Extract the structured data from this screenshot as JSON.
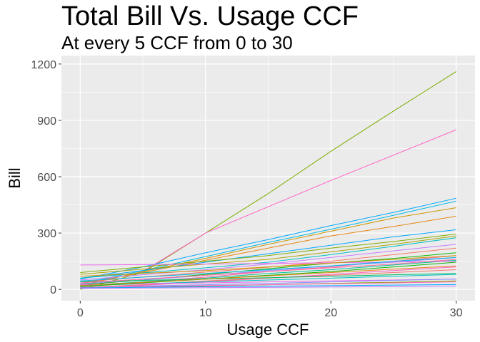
{
  "chart_data": {
    "type": "line",
    "title": "Total Bill Vs. Usage CCF",
    "subtitle": "At every 5 CCF from 0 to 30",
    "xlabel": "Usage CCF",
    "ylabel": "Bill",
    "x": [
      0,
      5,
      10,
      15,
      20,
      25,
      30
    ],
    "xticks": [
      0,
      10,
      20,
      30
    ],
    "yticks": [
      0,
      300,
      600,
      900,
      1200
    ],
    "xlim": [
      -1.5,
      31.5
    ],
    "ylim": [
      -60,
      1245
    ],
    "grid": true,
    "legend": "none",
    "series": [
      {
        "color": "#7CAE00",
        "values": [
          0,
          90,
          300,
          510,
          735,
          950,
          1160
        ]
      },
      {
        "color": "#FF61C3",
        "values": [
          20,
          95,
          300,
          440,
          580,
          715,
          850
        ]
      },
      {
        "color": "#00A9FF",
        "values": [
          55,
          120,
          195,
          265,
          340,
          410,
          485
        ]
      },
      {
        "color": "#00B8E7",
        "values": [
          30,
          100,
          175,
          250,
          320,
          395,
          470
        ]
      },
      {
        "color": "#CD9600",
        "values": [
          20,
          95,
          165,
          240,
          310,
          380,
          435
        ]
      },
      {
        "color": "#E68613",
        "values": [
          30,
          90,
          155,
          220,
          285,
          335,
          390
        ]
      },
      {
        "color": "#00A9FF",
        "values": [
          60,
          100,
          145,
          190,
          235,
          280,
          318
        ]
      },
      {
        "color": "#7CAE00",
        "values": [
          90,
          120,
          150,
          180,
          220,
          255,
          295
        ]
      },
      {
        "color": "#ABA300",
        "values": [
          80,
          108,
          135,
          160,
          200,
          240,
          285
        ]
      },
      {
        "color": "#00BFC4",
        "values": [
          60,
          88,
          115,
          145,
          185,
          230,
          275
        ]
      },
      {
        "color": "#C77CFF",
        "values": [
          50,
          78,
          105,
          135,
          170,
          205,
          240
        ]
      },
      {
        "color": "#F8766D",
        "values": [
          40,
          66,
          92,
          118,
          150,
          185,
          220
        ]
      },
      {
        "color": "#0CB702",
        "values": [
          25,
          50,
          80,
          110,
          140,
          165,
          195
        ]
      },
      {
        "color": "#FF68A1",
        "values": [
          15,
          40,
          65,
          95,
          120,
          150,
          180
        ]
      },
      {
        "color": "#8494FF",
        "values": [
          30,
          50,
          75,
          100,
          125,
          145,
          170
        ]
      },
      {
        "color": "#00C19A",
        "values": [
          20,
          40,
          60,
          85,
          105,
          130,
          155
        ]
      },
      {
        "color": "#ED68ED",
        "values": [
          130,
          132,
          135,
          138,
          142,
          146,
          150
        ]
      },
      {
        "color": "#FF61C3",
        "values": [
          5,
          22,
          40,
          60,
          80,
          100,
          120
        ]
      },
      {
        "color": "#F8766D",
        "values": [
          10,
          25,
          45,
          60,
          75,
          90,
          105
        ]
      },
      {
        "color": "#00BE67",
        "values": [
          40,
          48,
          55,
          62,
          70,
          78,
          85
        ]
      },
      {
        "color": "#00BFC4",
        "values": [
          20,
          30,
          40,
          50,
          60,
          70,
          80
        ]
      },
      {
        "color": "#ED68ED",
        "values": [
          25,
          30,
          35,
          40,
          45,
          50,
          55
        ]
      },
      {
        "color": "#8494FF",
        "values": [
          10,
          18,
          25,
          32,
          40,
          48,
          55
        ]
      },
      {
        "color": "#7CAE00",
        "values": [
          5,
          12,
          18,
          25,
          32,
          38,
          45
        ]
      },
      {
        "color": "#FF61C3",
        "values": [
          10,
          15,
          20,
          25,
          30,
          35,
          40
        ]
      },
      {
        "color": "#00A9FF",
        "values": [
          8,
          11,
          14,
          17,
          20,
          23,
          26
        ]
      },
      {
        "color": "#C77CFF",
        "values": [
          5,
          7,
          9,
          11,
          13,
          15,
          18
        ]
      },
      {
        "color": "#CD9600",
        "values": [
          70,
          85,
          100,
          120,
          140,
          160,
          180
        ]
      },
      {
        "color": "#00B8E7",
        "values": [
          45,
          65,
          85,
          105,
          125,
          150,
          170
        ]
      },
      {
        "color": "#FF68A1",
        "values": [
          35,
          55,
          75,
          95,
          115,
          135,
          160
        ]
      },
      {
        "color": "#0CB702",
        "values": [
          15,
          35,
          55,
          75,
          95,
          120,
          145
        ]
      },
      {
        "color": "#E68613",
        "values": [
          20,
          38,
          55,
          72,
          90,
          108,
          125
        ]
      }
    ]
  }
}
